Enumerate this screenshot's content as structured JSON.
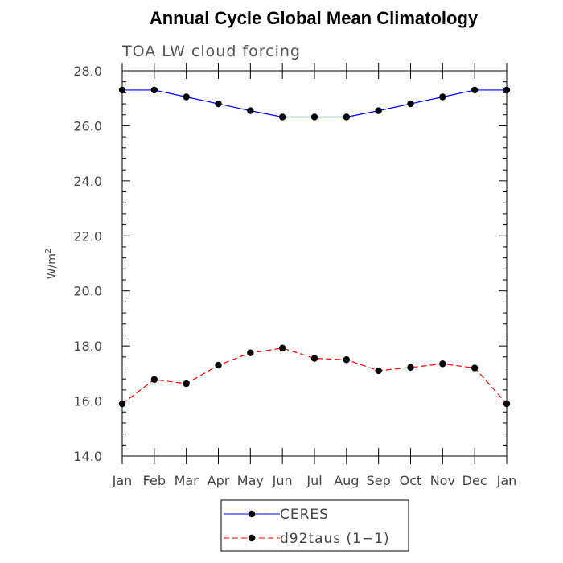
{
  "chart_data": {
    "type": "line",
    "title": "Annual Cycle Global Mean Climatology",
    "subtitle": "TOA LW cloud forcing",
    "xlabel": "",
    "ylabel_base": "W/m",
    "ylabel_sup": "2",
    "categories": [
      "Jan",
      "Feb",
      "Mar",
      "Apr",
      "May",
      "Jun",
      "Jul",
      "Aug",
      "Sep",
      "Oct",
      "Nov",
      "Dec",
      "Jan"
    ],
    "ylim": [
      14.0,
      28.0
    ],
    "yticks": [
      "14.0",
      "16.0",
      "18.0",
      "20.0",
      "22.0",
      "24.0",
      "26.0",
      "28.0"
    ],
    "grid": false,
    "legend_position": "bottom",
    "series": [
      {
        "name": "CERES",
        "color": "#0000ff",
        "line_style": "solid",
        "marker": "filled-circle",
        "values": [
          27.3,
          27.3,
          27.05,
          26.8,
          26.55,
          26.32,
          26.32,
          26.32,
          26.55,
          26.8,
          27.05,
          27.3,
          27.3
        ]
      },
      {
        "name": "d92taus (1−1)",
        "color": "#ff0000",
        "line_style": "dashed",
        "marker": "filled-circle",
        "values": [
          15.9,
          16.78,
          16.63,
          17.3,
          17.75,
          17.92,
          17.55,
          17.5,
          17.1,
          17.22,
          17.35,
          17.2,
          15.9
        ]
      }
    ]
  }
}
